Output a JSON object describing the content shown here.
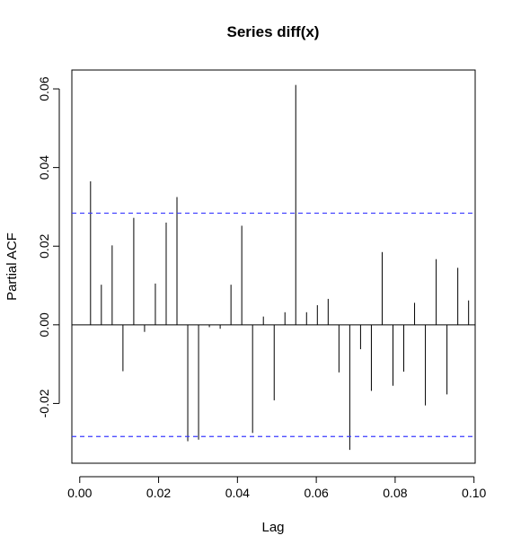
{
  "chart_data": {
    "type": "bar",
    "title": "Series  diff(x)",
    "xlabel": "Lag",
    "ylabel": "Partial ACF",
    "xlim": [
      -0.002,
      0.1003
    ],
    "ylim": [
      -0.0352,
      0.0648
    ],
    "x_ticks": [
      0.0,
      0.02,
      0.04,
      0.06,
      0.08,
      0.1
    ],
    "x_tick_labels": [
      "0.00",
      "0.02",
      "0.04",
      "0.06",
      "0.08",
      "0.10"
    ],
    "y_ticks": [
      -0.02,
      0.0,
      0.02,
      0.04,
      0.06
    ],
    "y_tick_labels": [
      "-0.02",
      "0.00",
      "0.02",
      "0.04",
      "0.06"
    ],
    "confidence_bound": 0.0284,
    "confidence_color": "#3b3bff",
    "bar_color": "#000000",
    "series": [
      {
        "x": [
          0.00274,
          0.00548,
          0.00822,
          0.01096,
          0.0137,
          0.01644,
          0.01918,
          0.02192,
          0.02466,
          0.0274,
          0.03014,
          0.03288,
          0.03562,
          0.03836,
          0.0411,
          0.04384,
          0.04658,
          0.04932,
          0.05205,
          0.05479,
          0.05753,
          0.06027,
          0.06301,
          0.06575,
          0.06849,
          0.07123,
          0.07397,
          0.07671,
          0.07945,
          0.08219,
          0.08493,
          0.08767,
          0.09041,
          0.09315,
          0.09589,
          0.09863
        ],
        "values": [
          0.0365,
          0.0102,
          0.0202,
          -0.0118,
          0.0272,
          -0.0018,
          0.0105,
          0.026,
          0.0325,
          -0.0296,
          -0.0292,
          -0.0006,
          -0.001,
          0.0102,
          0.0252,
          -0.0275,
          0.0021,
          -0.0192,
          0.0032,
          0.061,
          0.0032,
          0.005,
          0.0066,
          -0.0121,
          -0.0318,
          -0.0062,
          -0.0168,
          0.0185,
          -0.0155,
          -0.0119,
          0.0056,
          -0.0205,
          0.0167,
          -0.0177,
          0.0145,
          0.0062
        ]
      }
    ]
  }
}
